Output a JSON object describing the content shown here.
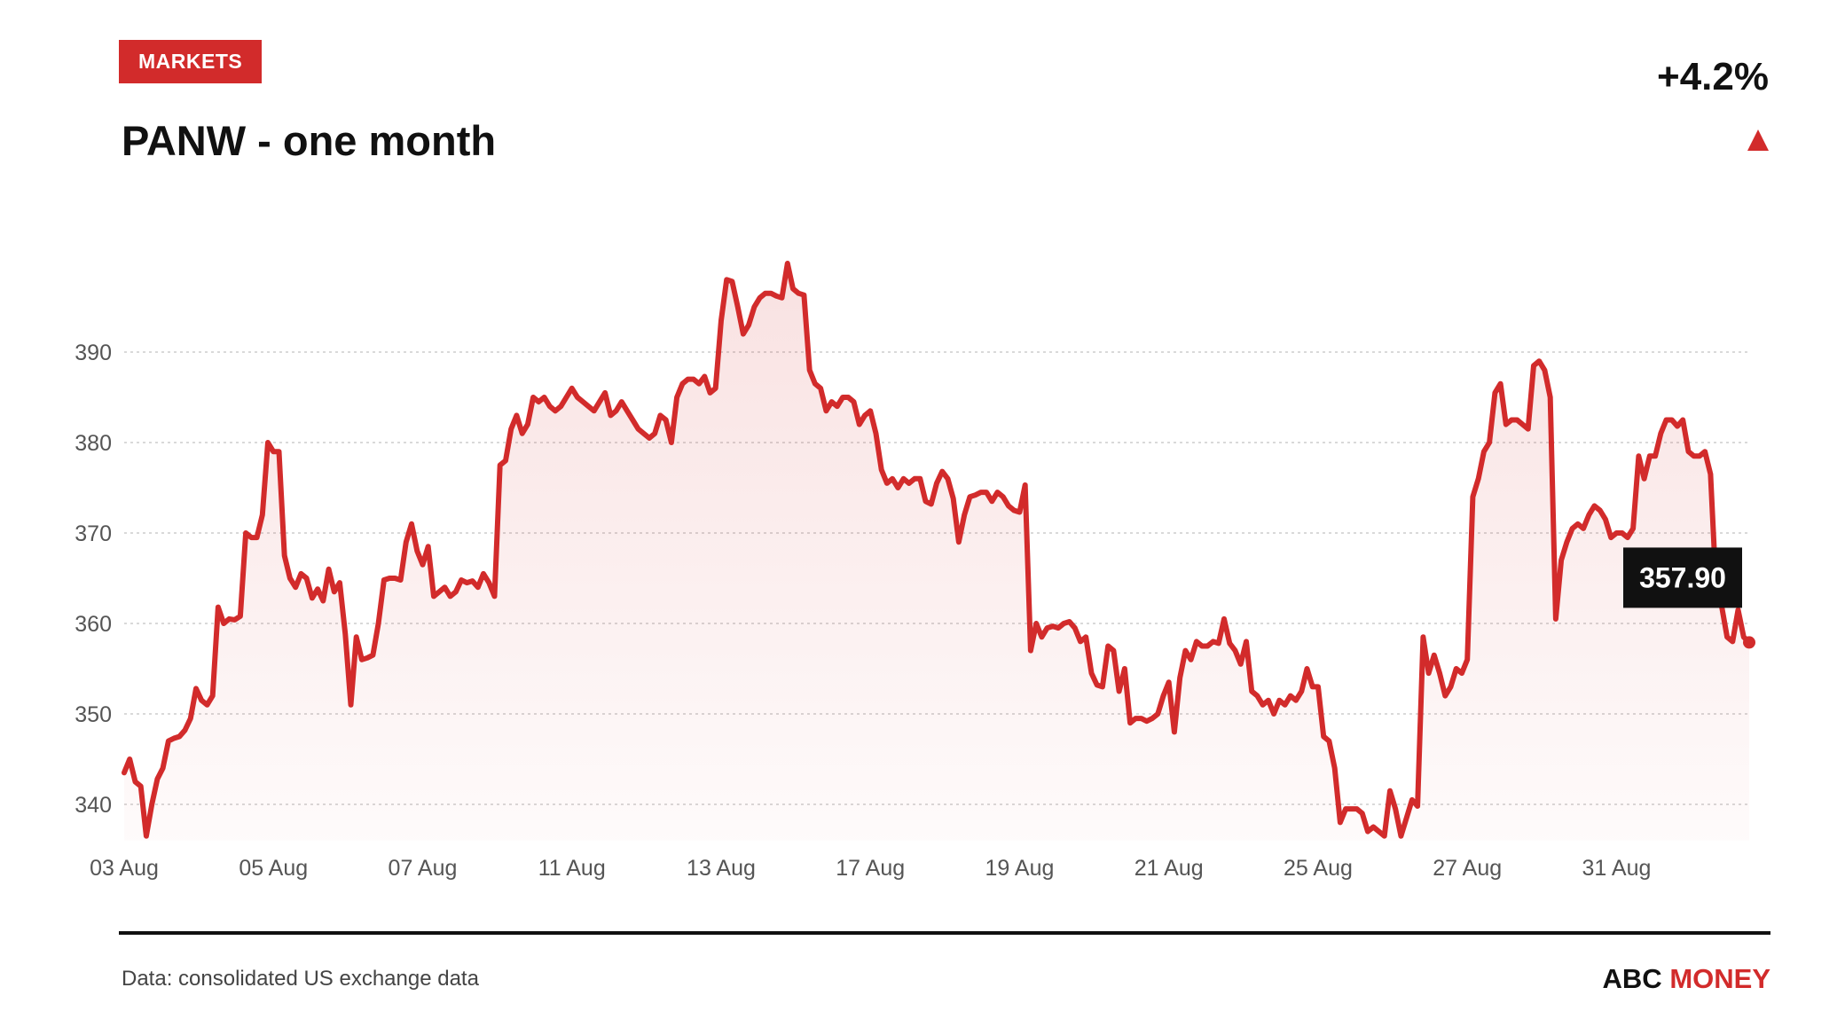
{
  "header": {
    "tag": "MARKETS",
    "title": "PANW - one month",
    "change": "+4.2%",
    "direction_icon": "triangle-up-icon"
  },
  "footer": {
    "source": "Data: consolidated US exchange data",
    "brand_part1": "ABC",
    "brand_part2": "MONEY"
  },
  "colors": {
    "accent": "#d22b2b",
    "text": "#111111",
    "muted": "#555555",
    "grid": "#d9d9d9",
    "label_bg": "#111111"
  },
  "chart_data": {
    "type": "area",
    "title": "PANW - one month",
    "xlabel": "",
    "ylabel": "",
    "ylim": [
      336,
      400
    ],
    "y_ticks": [
      340,
      350,
      360,
      370,
      380,
      390
    ],
    "grid": true,
    "x_ticks": [
      {
        "label": "03 Aug",
        "index": 0
      },
      {
        "label": "05 Aug",
        "index": 27
      },
      {
        "label": "07 Aug",
        "index": 54
      },
      {
        "label": "11 Aug",
        "index": 81
      },
      {
        "label": "13 Aug",
        "index": 108
      },
      {
        "label": "17 Aug",
        "index": 135
      },
      {
        "label": "19 Aug",
        "index": 162
      },
      {
        "label": "21 Aug",
        "index": 189
      },
      {
        "label": "25 Aug",
        "index": 216
      },
      {
        "label": "27 Aug",
        "index": 243
      },
      {
        "label": "31 Aug",
        "index": 270
      }
    ],
    "last_value_label": "357.90",
    "series": [
      {
        "values": [
          343.5,
          345,
          342.5,
          342,
          336.5,
          340,
          342.8,
          344,
          347,
          347.3,
          347.5,
          348.2,
          349.5,
          352.8,
          351.5,
          351,
          352,
          361.8,
          360,
          360.5,
          360.4,
          360.8,
          370,
          369.5,
          369.5,
          372,
          380,
          379,
          379,
          367.5,
          365,
          364,
          365.5,
          365,
          362.8,
          363.8,
          362.5,
          366,
          363.5,
          364.5,
          358.8,
          351,
          358.5,
          356,
          356.2,
          356.5,
          360,
          364.8,
          365,
          365,
          364.8,
          369,
          371,
          368,
          366.5,
          368.5,
          363,
          363.5,
          364,
          363,
          363.5,
          364.8,
          364.5,
          364.7,
          364,
          365.5,
          364.5,
          363,
          377.5,
          378,
          381.5,
          383,
          381,
          382,
          385,
          384.5,
          385,
          384,
          383.5,
          384,
          385,
          386,
          385,
          384.5,
          384,
          383.5,
          384.5,
          385.5,
          383,
          383.5,
          384.5,
          383.5,
          382.5,
          381.5,
          381,
          380.5,
          381,
          383,
          382.5,
          380,
          385,
          386.5,
          387,
          387,
          386.5,
          387.3,
          385.5,
          386,
          393.5,
          398,
          397.8,
          395,
          392,
          393,
          395,
          396,
          396.5,
          396.5,
          396.2,
          396,
          399.8,
          397,
          396.5,
          396.3,
          388,
          386.5,
          386,
          383.5,
          384.5,
          384,
          385,
          385,
          384.5,
          382,
          383,
          383.5,
          381,
          377,
          375.5,
          376,
          375,
          376,
          375.5,
          376,
          376,
          373.5,
          373.2,
          375.5,
          376.8,
          376,
          373.8,
          369,
          372,
          374,
          374.2,
          374.5,
          374.5,
          373.5,
          374.5,
          374,
          373,
          372.5,
          372.3,
          375.3,
          357,
          360,
          358.5,
          359.5,
          359.7,
          359.5,
          360,
          360.2,
          359.5,
          358,
          358.5,
          354.5,
          353.2,
          353,
          357.5,
          357,
          352.5,
          355,
          349,
          349.5,
          349.5,
          349.2,
          349.5,
          350,
          352,
          353.5,
          348,
          354,
          357,
          356,
          358,
          357.5,
          357.5,
          358,
          357.8,
          360.5,
          357.8,
          357,
          355.5,
          358,
          352.5,
          352,
          351,
          351.5,
          350,
          351.5,
          351,
          352,
          351.5,
          352.5,
          355,
          353,
          353,
          347.5,
          347,
          344,
          338,
          339.5,
          339.5,
          339.5,
          339,
          337,
          337.5,
          337,
          336.5,
          341.5,
          339.5,
          336.5,
          338.5,
          340.5,
          339.8,
          358.5,
          354.5,
          356.5,
          354.5,
          352,
          353,
          355,
          354.5,
          356,
          374,
          376,
          379,
          380,
          385.5,
          386.5,
          382,
          382.5,
          382.5,
          382,
          381.5,
          388.5,
          389,
          388,
          385,
          360.5,
          367,
          369,
          370.5,
          371,
          370.5,
          372,
          373,
          372.5,
          371.5,
          369.5,
          370,
          370,
          369.5,
          370.5,
          378.5,
          376,
          378.5,
          378.5,
          381,
          382.5,
          382.5,
          381.8,
          382.5,
          379,
          378.5,
          378.5,
          379,
          376.5,
          364,
          362,
          358.5,
          358,
          361.5,
          358.5,
          357.9
        ]
      }
    ]
  }
}
